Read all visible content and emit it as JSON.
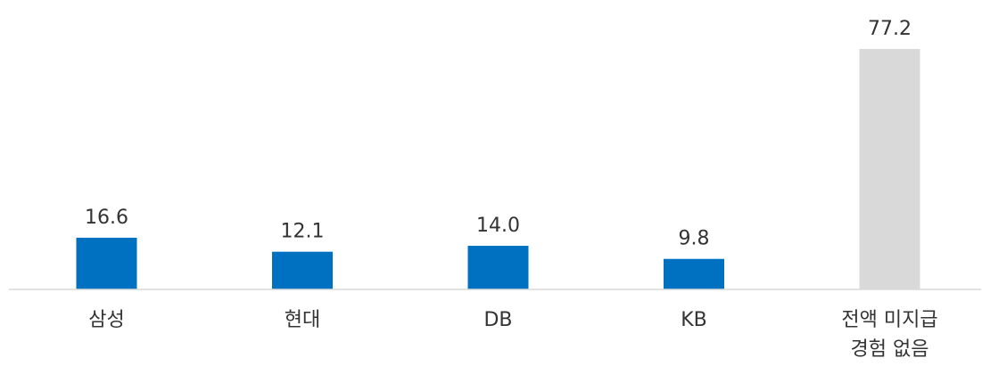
{
  "chart_data": {
    "type": "bar",
    "title": "",
    "xlabel": "",
    "ylabel": "",
    "categories": [
      [
        "삼성"
      ],
      [
        "현대"
      ],
      [
        "DB"
      ],
      [
        "KB"
      ],
      [
        "전액 미지급",
        "경험 없음"
      ]
    ],
    "values": [
      16.6,
      12.1,
      14.0,
      9.8,
      77.2
    ],
    "value_labels": [
      "16.6",
      "12.1",
      "14.0",
      "9.8",
      "77.2"
    ],
    "colors": [
      "#0070C0",
      "#0070C0",
      "#0070C0",
      "#0070C0",
      "#D9D9D9"
    ],
    "ylim": [
      0,
      77.2
    ],
    "grid": false,
    "legend": "none"
  }
}
